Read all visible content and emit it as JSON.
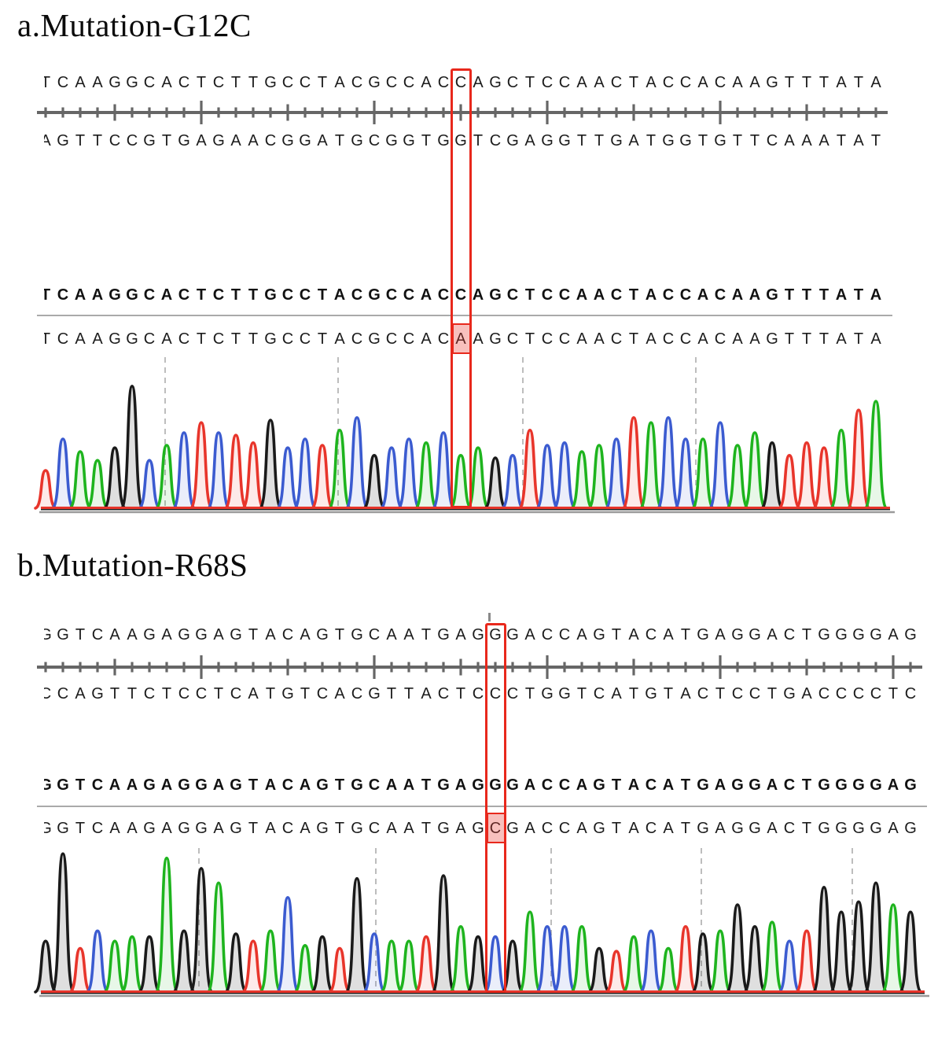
{
  "figure": {
    "kind": "sanger-sequencing-chromatograms",
    "background": "#ffffff",
    "accent_red": "#e8281c",
    "base_colors": {
      "A": "#1eb41e",
      "C": "#3b5bd0",
      "G": "#1a1a1a",
      "T": "#e8352b"
    }
  },
  "chart_data": [
    {
      "type": "area",
      "panel": "a",
      "title": "a.Mutation-G12C",
      "grid": "dashed-vertical",
      "legend": "none",
      "rows": {
        "top_strand": {
          "pre": "TCAAGGCACTCTTGCCTACGCCAC",
          "mut": "C",
          "post": "AGCTCCAACTACCACAAGTTTATA"
        },
        "bottom_strand": {
          "pre": "AGTTCCGTGAGAACGGATGCGGTG",
          "mut": "G",
          "post": "TCGAGGTTGATGGTGTTCAAATAT"
        },
        "reference": {
          "pre": "TCAAGGCACTCTTGCCTACGCCAC",
          "mut": "C",
          "post": "AGCTCCAACTACCACAAGTTTATA"
        },
        "sample": {
          "pre": "TCAAGGCACTCTTGCCTACGCCAC",
          "mut": "A",
          "post": "AGCTCCAACTACCACAAGTTTATA"
        }
      },
      "mutation": {
        "reference_base": "C",
        "sample_base": "A"
      },
      "trace": {
        "bases": "TCAAGGCACTCTTGCCTACGCCACAAGCTCCAACTACCACAAGTTTATA",
        "heights": [
          0.3,
          0.55,
          0.45,
          0.38,
          0.48,
          0.97,
          0.38,
          0.5,
          0.6,
          0.68,
          0.6,
          0.58,
          0.52,
          0.7,
          0.48,
          0.55,
          0.5,
          0.62,
          0.72,
          0.42,
          0.48,
          0.55,
          0.52,
          0.6,
          0.42,
          0.48,
          0.4,
          0.42,
          0.62,
          0.5,
          0.52,
          0.45,
          0.5,
          0.55,
          0.72,
          0.68,
          0.72,
          0.55,
          0.55,
          0.68,
          0.5,
          0.6,
          0.52,
          0.42,
          0.52,
          0.48,
          0.62,
          0.78,
          0.85
        ]
      }
    },
    {
      "type": "area",
      "panel": "b",
      "title": "b.Mutation-R68S",
      "grid": "dashed-vertical",
      "legend": "none",
      "rows": {
        "top_strand": {
          "pre": "GGTCAAGAGGAGTACAGTGCAATGAG",
          "mut": "G",
          "post": "GACCAGTACATGAGGACTGGGGAG"
        },
        "bottom_strand": {
          "pre": "CCAGTTCTCCTCATGTCACGTTACTC",
          "mut": "C",
          "post": "CTGGTCATGTACTCCTGACCCCTC"
        },
        "reference": {
          "pre": "GGTCAAGAGGAGTACAGTGCAATGAG",
          "mut": "G",
          "post": "GACCAGTACATGAGGACTGGGGAG"
        },
        "sample": {
          "pre": "GGTCAAGAGGAGTACAGTGCAATGAG",
          "mut": "C",
          "post": "GACCAGTACATGAGGACTGGGGAG"
        }
      },
      "mutation": {
        "reference_base": "G",
        "sample_base": "C"
      },
      "trace": {
        "bases": "GGTCAAGAGGAGTACAGTGCAATGAGCGACCAGTACATGAGGACTGGGGAG",
        "heights": [
          0.35,
          0.95,
          0.3,
          0.42,
          0.35,
          0.38,
          0.38,
          0.92,
          0.42,
          0.85,
          0.75,
          0.4,
          0.35,
          0.42,
          0.65,
          0.32,
          0.38,
          0.3,
          0.78,
          0.4,
          0.35,
          0.35,
          0.38,
          0.8,
          0.45,
          0.38,
          0.38,
          0.35,
          0.55,
          0.45,
          0.45,
          0.45,
          0.3,
          0.28,
          0.38,
          0.42,
          0.3,
          0.45,
          0.4,
          0.42,
          0.6,
          0.45,
          0.48,
          0.35,
          0.42,
          0.72,
          0.55,
          0.62,
          0.75,
          0.6,
          0.55
        ]
      }
    }
  ]
}
